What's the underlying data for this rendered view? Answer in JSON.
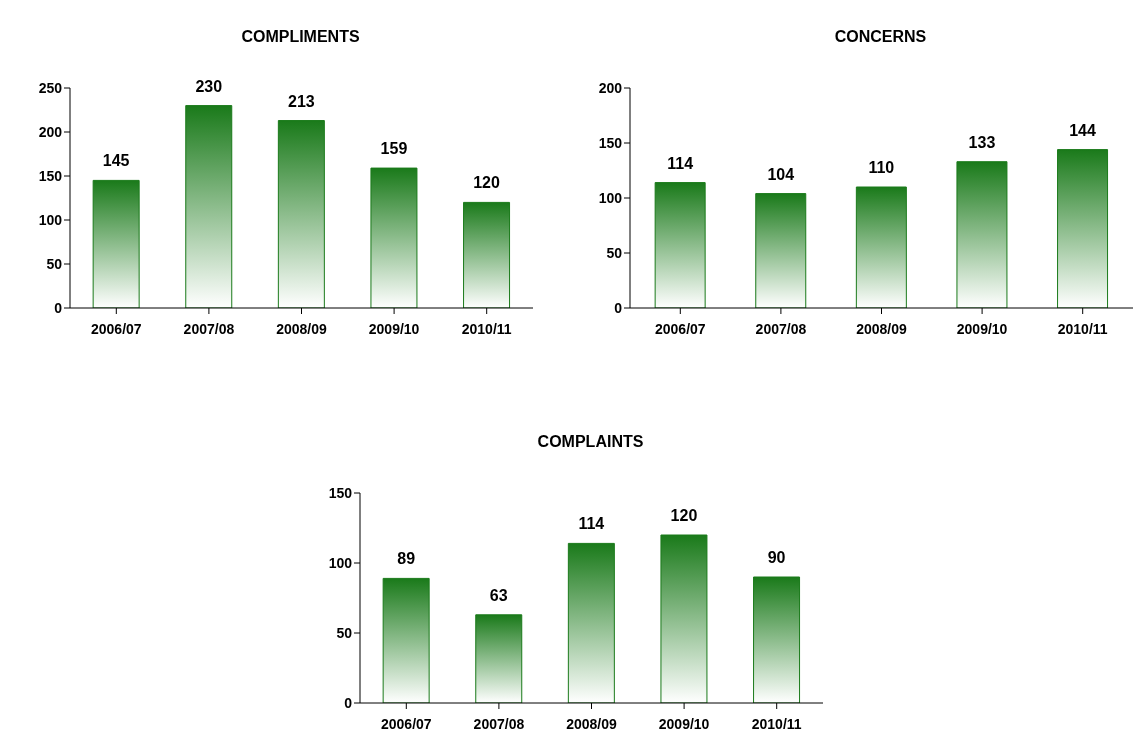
{
  "chart_data": [
    {
      "type": "bar",
      "title": "COMPLIMENTS",
      "categories": [
        "2006/07",
        "2007/08",
        "2008/09",
        "2009/10",
        "2010/11"
      ],
      "values": [
        145,
        230,
        213,
        159,
        120
      ],
      "color": "#1a7a1a",
      "ylim": [
        0,
        250
      ],
      "yticks": [
        0,
        50,
        100,
        150,
        200,
        250
      ],
      "grid": false,
      "legend": false,
      "data_labels": true
    },
    {
      "type": "bar",
      "title": "CONCERNS",
      "categories": [
        "2006/07",
        "2007/08",
        "2008/09",
        "2009/10",
        "2010/11"
      ],
      "values": [
        114,
        104,
        110,
        133,
        144
      ],
      "color": "#1a7a1a",
      "ylim": [
        0,
        200
      ],
      "yticks": [
        0,
        50,
        100,
        150,
        200
      ],
      "grid": false,
      "legend": false,
      "data_labels": true
    },
    {
      "type": "bar",
      "title": "COMPLAINTS",
      "categories": [
        "2006/07",
        "2007/08",
        "2008/09",
        "2009/10",
        "2010/11"
      ],
      "values": [
        89,
        63,
        114,
        120,
        90
      ],
      "color": "#1a7a1a",
      "ylim": [
        0,
        150
      ],
      "yticks": [
        0,
        50,
        100,
        150
      ],
      "grid": false,
      "legend": false,
      "data_labels": true
    }
  ]
}
